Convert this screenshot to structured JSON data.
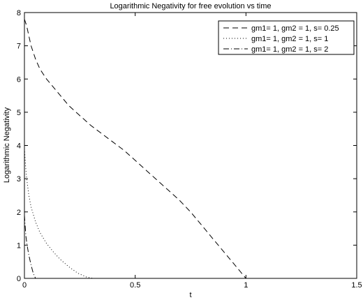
{
  "chart_data": {
    "type": "line",
    "title": "Logarithmic Negativity for free evolution vs time",
    "xlabel": "t",
    "ylabel": "Logarithmic Negativity",
    "xlim": [
      0,
      1.5
    ],
    "ylim": [
      0,
      8
    ],
    "xticks": [
      "0",
      "0.5",
      "1",
      "1.5"
    ],
    "yticks": [
      "0",
      "1",
      "2",
      "3",
      "4",
      "5",
      "6",
      "7",
      "8"
    ],
    "grid": false,
    "legend_position": "top-right",
    "series": [
      {
        "name": "gm1= 1, gm2 = 1, s= 0.25",
        "style": "dashed",
        "color": "#000000",
        "x": [
          0,
          0.01,
          0.02,
          0.03,
          0.05,
          0.07,
          0.1,
          0.15,
          0.2,
          0.25,
          0.3,
          0.35,
          0.4,
          0.45,
          0.5,
          0.55,
          0.6,
          0.65,
          0.7,
          0.75,
          0.8,
          0.85,
          0.9,
          0.95,
          1.0
        ],
        "y": [
          7.8,
          7.6,
          7.3,
          7.0,
          6.6,
          6.3,
          6.0,
          5.6,
          5.2,
          4.9,
          4.6,
          4.35,
          4.1,
          3.85,
          3.55,
          3.25,
          2.95,
          2.65,
          2.35,
          2.0,
          1.6,
          1.2,
          0.8,
          0.4,
          0.0
        ]
      },
      {
        "name": "gm1= 1, gm2 = 1, s= 1",
        "style": "dotted",
        "color": "#000000",
        "x": [
          0,
          0.005,
          0.01,
          0.02,
          0.03,
          0.05,
          0.07,
          0.1,
          0.13,
          0.16,
          0.2,
          0.24,
          0.28,
          0.31
        ],
        "y": [
          3.9,
          3.4,
          3.0,
          2.5,
          2.15,
          1.7,
          1.38,
          1.05,
          0.8,
          0.58,
          0.35,
          0.16,
          0.04,
          0.0
        ]
      },
      {
        "name": "gm1= 1, gm2 = 1, s= 2",
        "style": "dashdot",
        "color": "#000000",
        "x": [
          0,
          0.003,
          0.007,
          0.012,
          0.02,
          0.03,
          0.04,
          0.05
        ],
        "y": [
          1.9,
          1.6,
          1.25,
          1.0,
          0.7,
          0.4,
          0.15,
          0.0
        ]
      }
    ]
  }
}
